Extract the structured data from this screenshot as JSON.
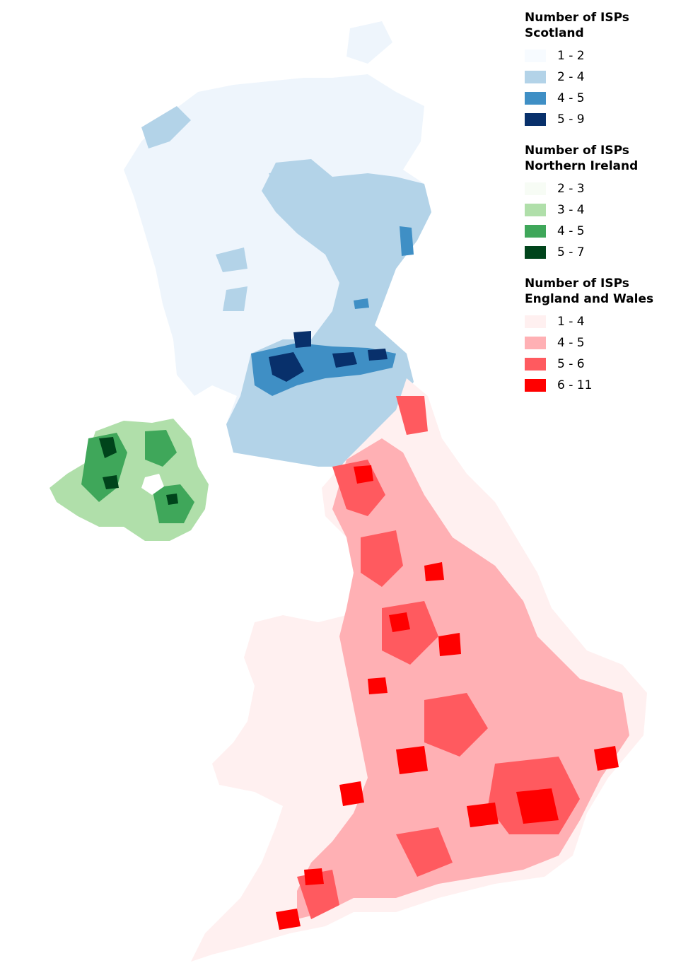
{
  "map": {
    "regions": [
      {
        "name": "scotland",
        "fill_class": 0
      },
      {
        "name": "northern-ireland",
        "fill_class": 1
      },
      {
        "name": "england-wales",
        "fill_class": 0
      }
    ]
  },
  "legend": [
    {
      "title_line1": "Number of ISPs Scotland",
      "title_line2": "",
      "classes": [
        {
          "label": "1 - 2",
          "color": "#f7fbff"
        },
        {
          "label": "2 - 4",
          "color": "#b3d3e8"
        },
        {
          "label": "4 - 5",
          "color": "#3f8fc5"
        },
        {
          "label": "5 - 9",
          "color": "#08306b"
        }
      ]
    },
    {
      "title_line1": "Number of ISPs",
      "title_line2": "Northern Ireland",
      "classes": [
        {
          "label": "2 - 3",
          "color": "#f7fcf5"
        },
        {
          "label": "3 - 4",
          "color": "#b0dfaa"
        },
        {
          "label": "4 - 5",
          "color": "#3fa75a"
        },
        {
          "label": "5 - 7",
          "color": "#00441b"
        }
      ]
    },
    {
      "title_line1": "Number of ISPs",
      "title_line2": "England and Wales",
      "classes": [
        {
          "label": "1 - 4",
          "color": "#fff0f0"
        },
        {
          "label": "4 - 5",
          "color": "#ffb0b4"
        },
        {
          "label": "5 - 6",
          "color": "#ff5a5f"
        },
        {
          "label": "6 - 11",
          "color": "#ff0000"
        }
      ]
    }
  ]
}
